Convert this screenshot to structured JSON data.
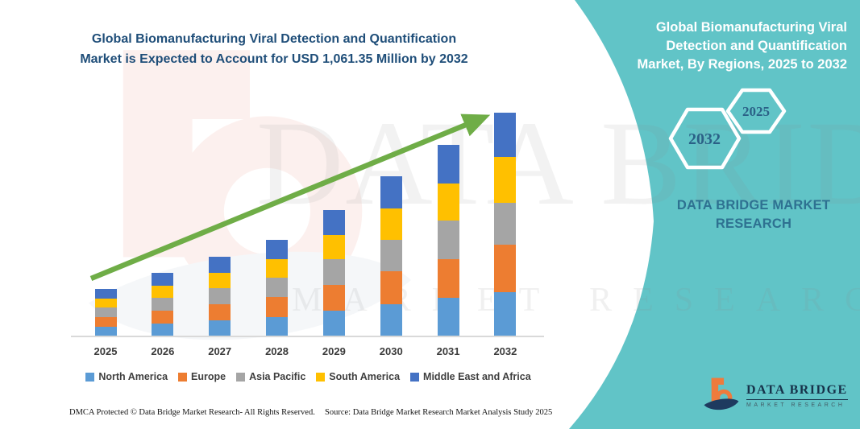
{
  "colors": {
    "panel_teal": "#61C4C7",
    "title_navy": "#1F4E79",
    "arrow_green": "#6FAD47",
    "hexagon_label_blue": "#2B6187",
    "brand_text_blue": "#2E7191",
    "logo_orange": "#EE7B3C",
    "logo_navy": "#1E3A5F"
  },
  "header": {
    "title_line1": "Global Biomanufacturing Viral Detection and Quantification",
    "title_line2": "Market is Expected to Account for USD 1,061.35 Million by 2032"
  },
  "watermark": {
    "big_text": "DATA BRIDGE",
    "sub_text": "MARKET RESEARCH"
  },
  "side_panel": {
    "title_lines": [
      "Global Biomanufacturing Viral",
      "Detection and Quantification",
      "Market, By Regions, 2025 to 2032"
    ],
    "hexagon_back_label": "2032",
    "hexagon_front_label": "2025",
    "brand_line1": "DATA BRIDGE MARKET",
    "brand_line2": "RESEARCH"
  },
  "logo": {
    "name": "DATA BRIDGE",
    "tagline": "MARKET RESEARCH"
  },
  "footer": {
    "dmca": "DMCA Protected © Data Bridge Market Research-  All Rights Reserved.",
    "source": "Source: Data Bridge Market Research  Market Analysis Study 2025"
  },
  "chart_data": {
    "type": "bar",
    "stacked": true,
    "unit": "USD Million",
    "categories": [
      "2025",
      "2026",
      "2027",
      "2028",
      "2029",
      "2030",
      "2031",
      "2032"
    ],
    "series": [
      {
        "name": "North America",
        "color": "#5B9BD5",
        "values": [
          43,
          59,
          74,
          90,
          119,
          150,
          180,
          207
        ]
      },
      {
        "name": "Europe",
        "color": "#ED7D31",
        "values": [
          46,
          61,
          77,
          93,
          123,
          155,
          186,
          226
        ]
      },
      {
        "name": "Asia Pacific",
        "color": "#A5A5A5",
        "values": [
          47,
          61,
          76,
          92,
          121,
          152,
          182,
          198
        ]
      },
      {
        "name": "South America",
        "color": "#FFC000",
        "values": [
          42,
          58,
          73,
          89,
          117,
          148,
          178,
          220
        ]
      },
      {
        "name": "Middle East and Africa",
        "color": "#4472C4",
        "values": [
          44,
          59,
          75,
          92,
          120,
          153,
          182,
          210.35
        ]
      }
    ],
    "totals": [
      222,
      298,
      375,
      456,
      600,
      758,
      908,
      1061.35
    ],
    "ylim": [
      0,
      1100
    ],
    "y_axis_visible": false,
    "gridlines": false,
    "legend_position": "bottom",
    "annotation": "upward trend arrow"
  }
}
